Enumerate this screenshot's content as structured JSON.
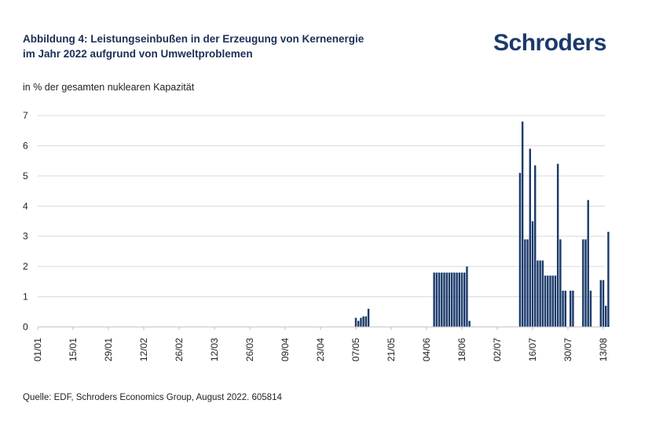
{
  "header": {
    "title_line1": "Abbildung 4: Leistungseinbußen in der Erzeugung von Kernenergie",
    "title_line2": "im Jahr 2022 aufgrund von Umweltproblemen",
    "logo": "Schroders"
  },
  "footer": {
    "source": "Quelle: EDF, Schroders Economics Group, August 2022. 605814"
  },
  "colors": {
    "bar": "#1b3a6b",
    "grid": "#d9d9d9",
    "title": "#1b2f55"
  },
  "chart_data": {
    "type": "bar",
    "ylabel": "in % der gesamten nuklearen Kapazität",
    "ylim": [
      0,
      7
    ],
    "yticks": [
      0,
      1,
      2,
      3,
      4,
      5,
      6,
      7
    ],
    "grid": true,
    "xticks": [
      "01/01",
      "15/01",
      "29/01",
      "12/02",
      "26/02",
      "12/03",
      "26/03",
      "09/04",
      "23/04",
      "07/05",
      "21/05",
      "04/06",
      "18/06",
      "02/07",
      "16/07",
      "30/07",
      "13/08"
    ],
    "x": [
      "2022-05-07",
      "2022-05-08",
      "2022-05-09",
      "2022-05-10",
      "2022-05-11",
      "2022-05-12",
      "2022-06-07",
      "2022-06-08",
      "2022-06-09",
      "2022-06-10",
      "2022-06-11",
      "2022-06-12",
      "2022-06-13",
      "2022-06-14",
      "2022-06-15",
      "2022-06-16",
      "2022-06-17",
      "2022-06-18",
      "2022-06-19",
      "2022-06-20",
      "2022-06-21",
      "2022-07-11",
      "2022-07-12",
      "2022-07-13",
      "2022-07-14",
      "2022-07-15",
      "2022-07-16",
      "2022-07-17",
      "2022-07-18",
      "2022-07-19",
      "2022-07-20",
      "2022-07-21",
      "2022-07-22",
      "2022-07-23",
      "2022-07-24",
      "2022-07-25",
      "2022-07-26",
      "2022-07-27",
      "2022-07-28",
      "2022-07-29",
      "2022-07-30",
      "2022-07-31",
      "2022-08-01",
      "2022-08-02",
      "2022-08-03",
      "2022-08-04",
      "2022-08-05",
      "2022-08-06",
      "2022-08-07",
      "2022-08-08",
      "2022-08-09",
      "2022-08-10",
      "2022-08-11",
      "2022-08-12",
      "2022-08-13",
      "2022-08-14",
      "2022-08-15"
    ],
    "values": [
      0.3,
      0.2,
      0.3,
      0.35,
      0.35,
      0.6,
      1.8,
      1.8,
      1.8,
      1.8,
      1.8,
      1.8,
      1.8,
      1.8,
      1.8,
      1.8,
      1.8,
      1.8,
      1.8,
      2.0,
      0.2,
      5.1,
      6.8,
      2.9,
      2.9,
      5.9,
      3.5,
      5.35,
      2.2,
      2.2,
      2.2,
      1.7,
      1.7,
      1.7,
      1.7,
      1.7,
      5.4,
      2.9,
      1.2,
      1.2,
      0,
      1.2,
      1.2,
      0,
      0,
      0,
      2.9,
      2.9,
      4.2,
      1.2,
      0,
      0,
      0,
      1.55,
      1.55,
      0.7,
      3.15
    ]
  }
}
